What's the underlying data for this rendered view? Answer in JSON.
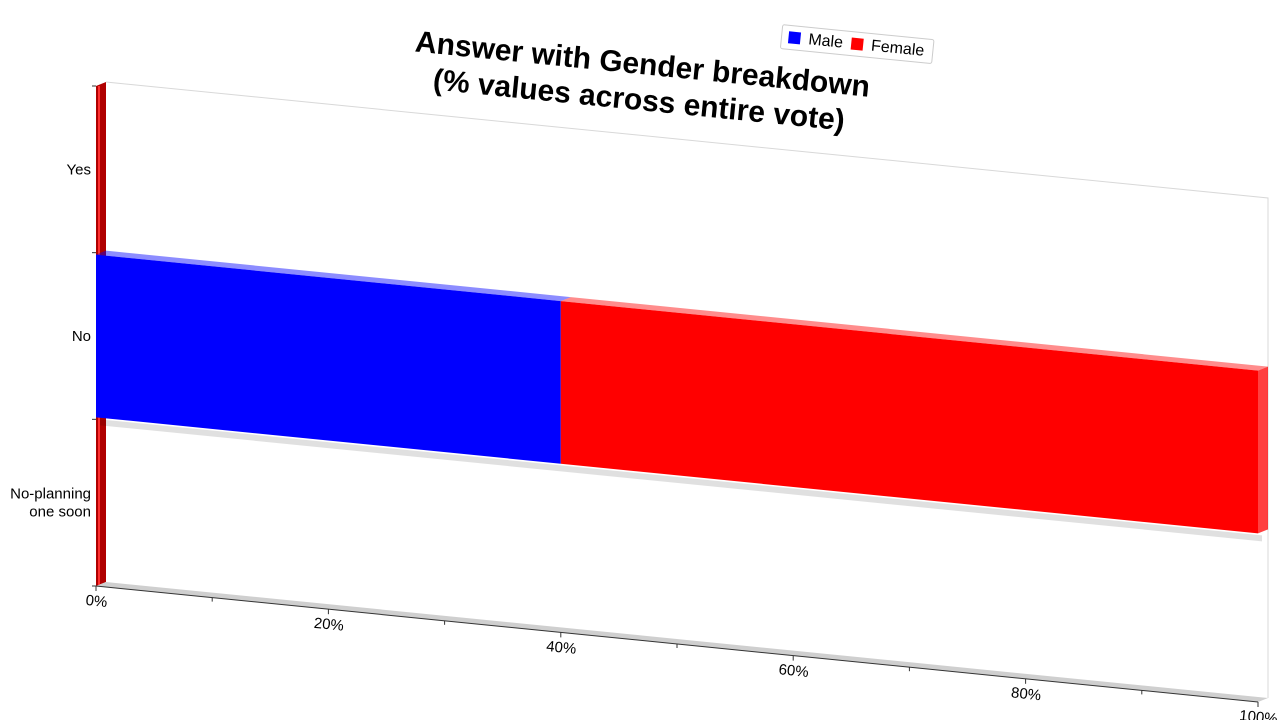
{
  "chart_data": {
    "type": "bar",
    "orientation": "horizontal",
    "stacked": true,
    "title": [
      "Answer with Gender breakdown",
      "(% values across entire vote)"
    ],
    "categories": [
      "Yes",
      "No",
      "No-planning one soon"
    ],
    "category_display": [
      [
        "Yes"
      ],
      [
        "No"
      ],
      [
        "No-planning",
        "one soon"
      ]
    ],
    "series": [
      {
        "name": "Male",
        "color": "#0000ff",
        "values": [
          0,
          40,
          0
        ]
      },
      {
        "name": "Female",
        "color": "#ff0000",
        "values": [
          0,
          60,
          0
        ]
      }
    ],
    "xlim": [
      0,
      100
    ],
    "xticks": [
      0,
      20,
      40,
      60,
      80,
      100
    ],
    "xtick_labels": [
      "0%",
      "20%",
      "40%",
      "60%",
      "80%",
      "100%"
    ],
    "legend": {
      "position": "top",
      "items": [
        "Male",
        "Female"
      ]
    },
    "grid": false
  }
}
